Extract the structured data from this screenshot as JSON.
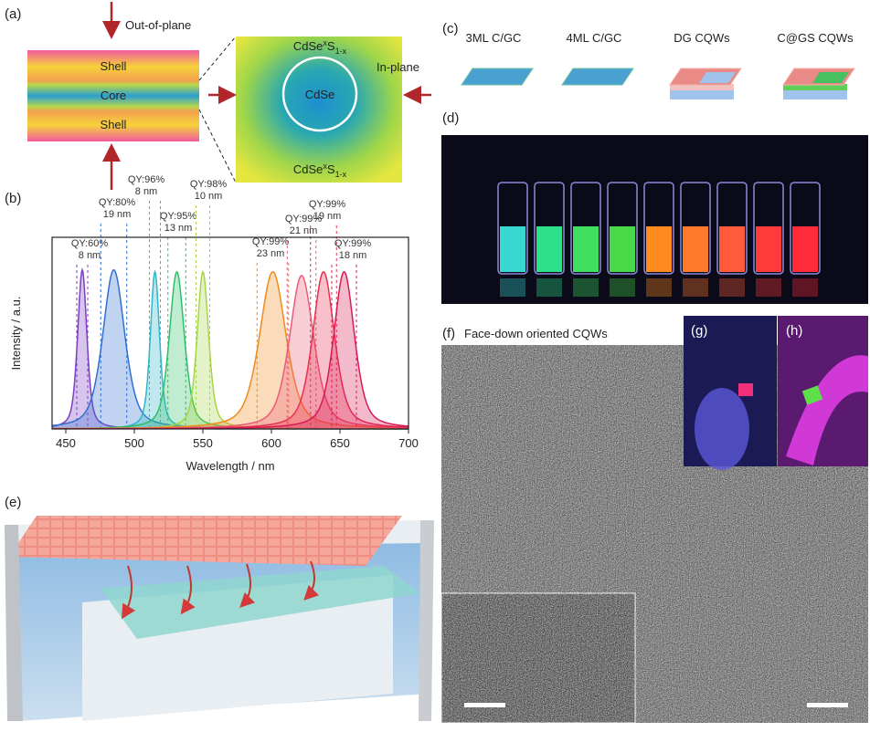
{
  "panels": {
    "a": "(a)",
    "b": "(b)",
    "c": "(c)",
    "d": "(d)",
    "e": "(e)",
    "f": "(f)",
    "g": "(g)",
    "h": "(h)"
  },
  "a": {
    "out_of_plane": "Out-of-plane",
    "shell_top": "Shell",
    "core": "Core",
    "shell_bottom": "Shell",
    "alloy_top": {
      "base1": "CdSe",
      "sub1": "x",
      "base2": "S",
      "sub2": "1-x"
    },
    "cdse": "CdSe",
    "alloy_bottom": {
      "base1": "CdSe",
      "sub1": "x",
      "base2": "S",
      "sub2": "1-x"
    },
    "in_plane": "In-plane"
  },
  "c": {
    "samples": [
      "3ML C/GC",
      "4ML C/GC",
      "DG CQWs",
      "C@GS CQWs"
    ]
  },
  "f": {
    "title": "Face-down oriented CQWs"
  },
  "chart_data": {
    "type": "spectra",
    "xlabel": "Wavelength / nm",
    "ylabel": "Intensity / a.u.",
    "xlim": [
      440,
      700
    ],
    "xticks": [
      450,
      500,
      550,
      600,
      650,
      700
    ],
    "ylim": [
      0,
      1
    ],
    "x": [
      462,
      485,
      515,
      531,
      550,
      601,
      622,
      638,
      653
    ],
    "values": [
      0.83,
      0.83,
      0.82,
      0.82,
      0.82,
      0.82,
      0.8,
      0.82,
      0.82
    ],
    "fwhm": [
      8,
      19,
      8,
      13,
      10,
      23,
      21,
      19,
      18
    ],
    "fwhm_labels": [
      "8 nm",
      "19 nm",
      "8 nm",
      "13 nm",
      "10 nm",
      "23 nm",
      "21 nm",
      "19 nm",
      "18 nm"
    ],
    "qy_labels": [
      "QY:60%",
      "QY:80%",
      "QY:96%",
      "QY:95%",
      "QY:98%",
      "QY:99%",
      "QY:99%",
      "QY:99%",
      "QY:99%"
    ],
    "colors": [
      "#7b3fc4",
      "#2f6fd0",
      "#2fb7c9",
      "#2fbf6a",
      "#a6d44a",
      "#f08a1c",
      "#ec5a78",
      "#e8304f",
      "#d81b55"
    ]
  }
}
